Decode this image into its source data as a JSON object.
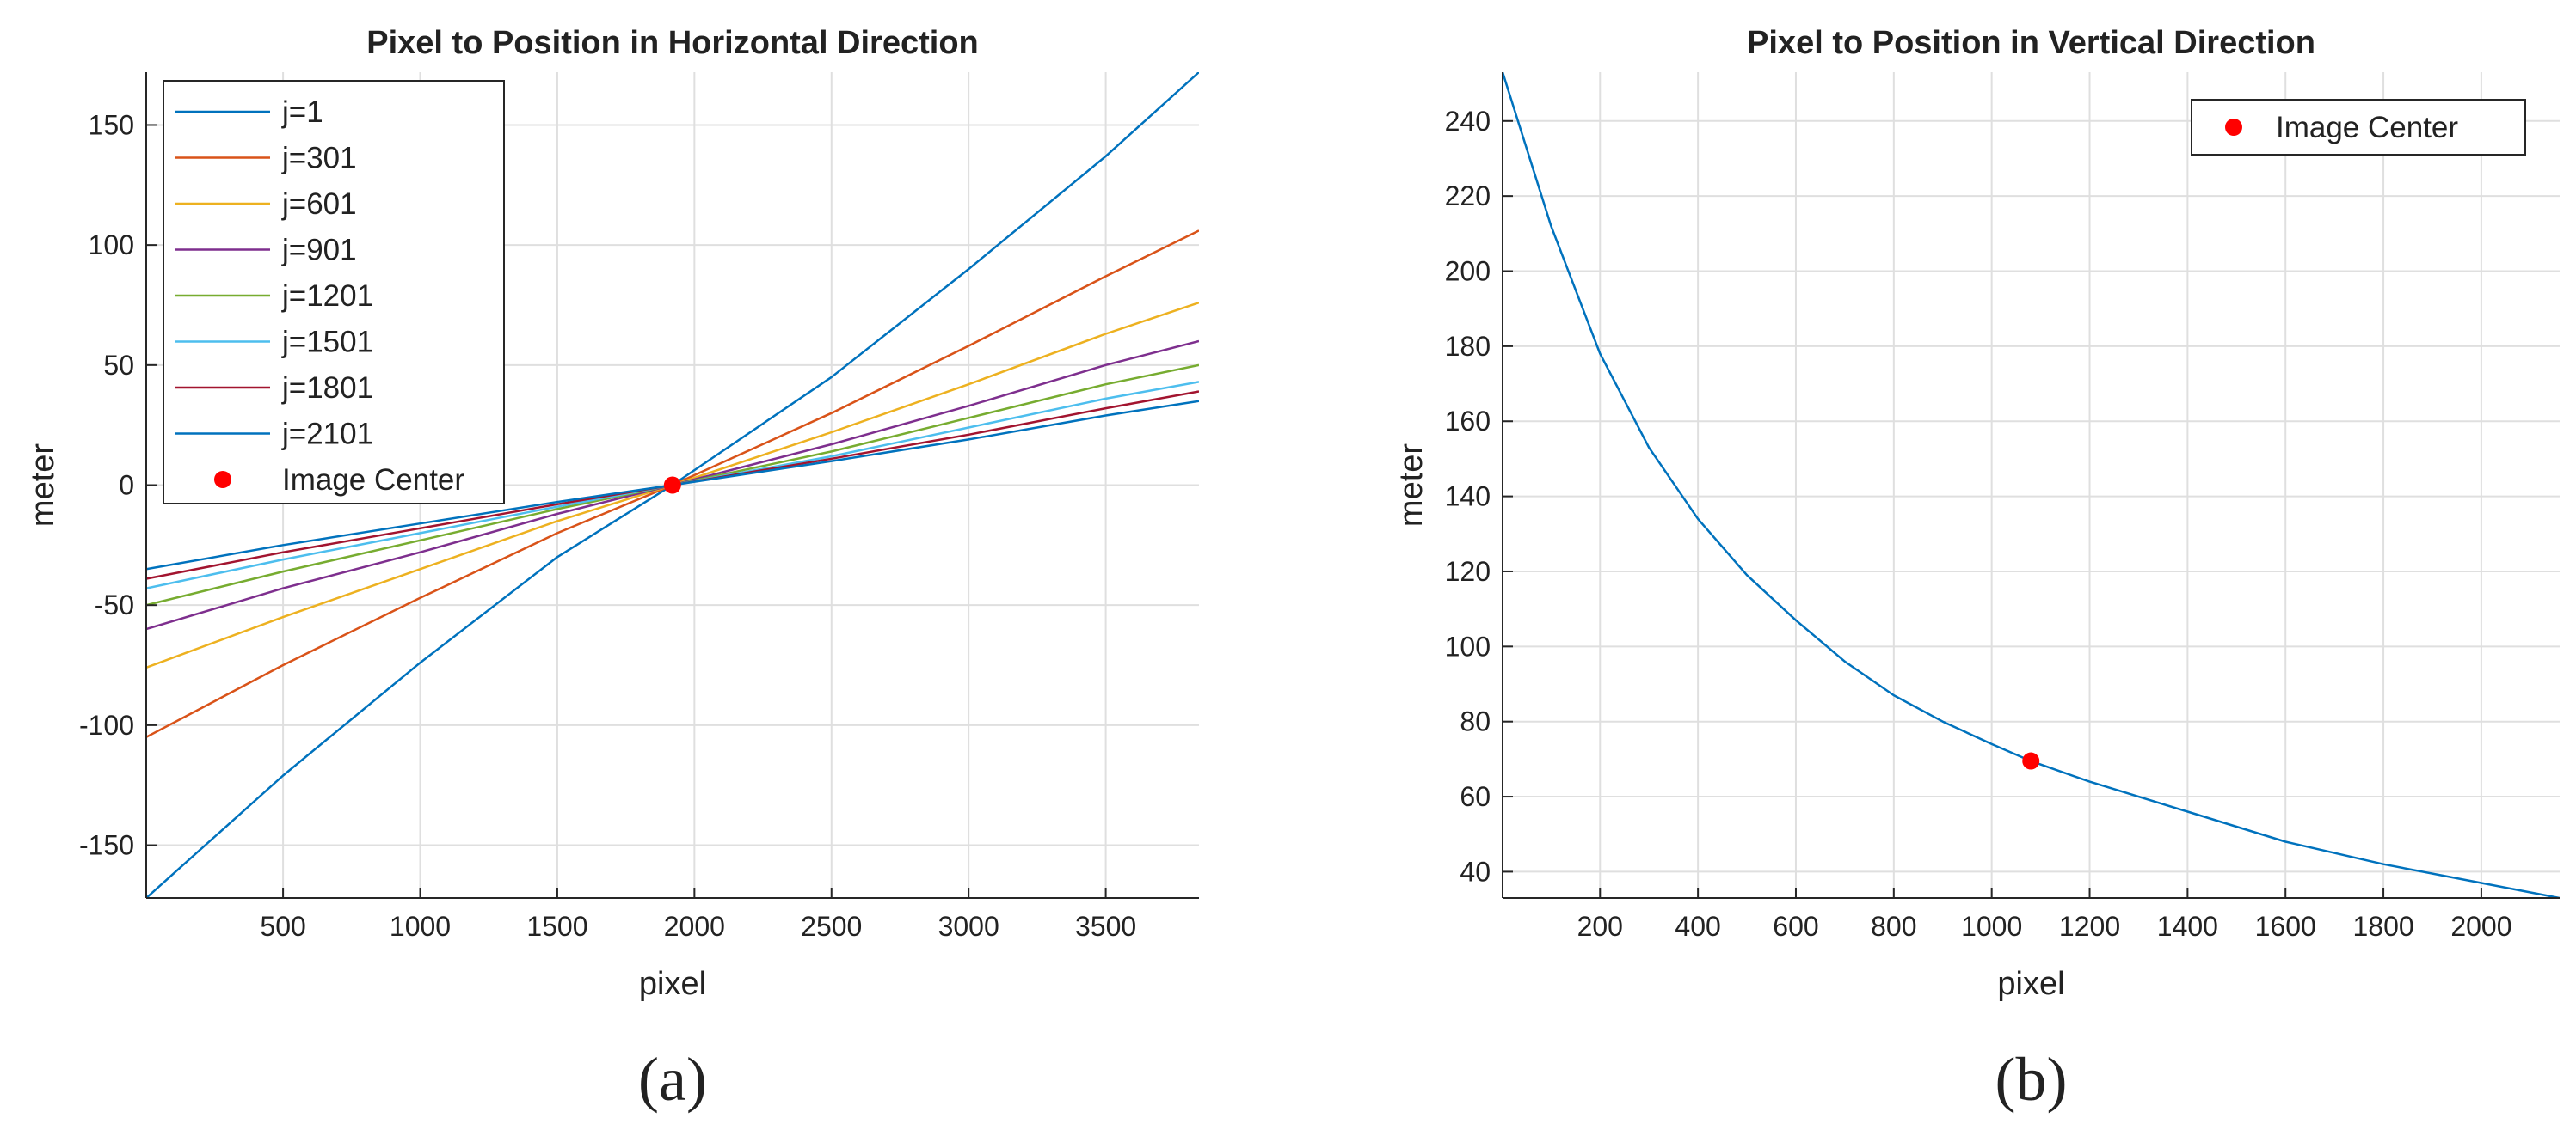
{
  "charts": [
    {
      "caption": "(a)",
      "chart_data": {
        "type": "line",
        "title": "Pixel to Position in Horizontal Direction",
        "xlabel": "pixel",
        "ylabel": "meter",
        "xlim": [
          1,
          3840
        ],
        "ylim": [
          -172,
          172
        ],
        "xticks": [
          500,
          1000,
          1500,
          2000,
          2500,
          3000,
          3500
        ],
        "yticks": [
          -150,
          -100,
          -50,
          0,
          50,
          100,
          150
        ],
        "grid": true,
        "legend": "top-left",
        "x": [
          1,
          500,
          1000,
          1500,
          1920,
          2500,
          3000,
          3500,
          3840
        ],
        "series": [
          {
            "name": "j=1",
            "color": "#0072BD",
            "values": [
              -172,
              -121,
              -74,
              -30,
              0,
              45,
              90,
              137,
              172
            ]
          },
          {
            "name": "j=301",
            "color": "#D95319",
            "values": [
              -105,
              -75,
              -47,
              -20,
              0,
              30,
              58,
              87,
              106
            ]
          },
          {
            "name": "j=601",
            "color": "#EDB120",
            "values": [
              -76,
              -55,
              -35,
              -15,
              0,
              22,
              42,
              63,
              76
            ]
          },
          {
            "name": "j=901",
            "color": "#7E2F8E",
            "values": [
              -60,
              -43,
              -28,
              -12,
              0,
              17,
              33,
              50,
              60
            ]
          },
          {
            "name": "j=1201",
            "color": "#77AC30",
            "values": [
              -50,
              -36,
              -23,
              -10,
              0,
              14,
              28,
              42,
              50
            ]
          },
          {
            "name": "j=1501",
            "color": "#4DBEEE",
            "values": [
              -43,
              -31,
              -20,
              -9,
              0,
              12,
              24,
              36,
              43
            ]
          },
          {
            "name": "j=1801",
            "color": "#A2142F",
            "values": [
              -39,
              -28,
              -18,
              -8,
              0,
              11,
              21,
              32,
              39
            ]
          },
          {
            "name": "j=2101",
            "color": "#0072BD",
            "values": [
              -35,
              -25,
              -16,
              -7,
              0,
              10,
              19,
              29,
              35
            ]
          }
        ],
        "marker": {
          "name": "Image Center",
          "x": 1920,
          "y": 0,
          "color": "#FF0000"
        }
      }
    },
    {
      "caption": "(b)",
      "chart_data": {
        "type": "line",
        "title": "Pixel to Position in Vertical Direction",
        "xlabel": "pixel",
        "ylabel": "meter",
        "xlim": [
          1,
          2160
        ],
        "ylim": [
          33,
          253
        ],
        "xticks": [
          200,
          400,
          600,
          800,
          1000,
          1200,
          1400,
          1600,
          1800,
          2000
        ],
        "yticks": [
          40,
          60,
          80,
          100,
          120,
          140,
          160,
          180,
          200,
          220,
          240
        ],
        "grid": true,
        "legend": "top-right",
        "x": [
          1,
          100,
          200,
          300,
          400,
          500,
          600,
          700,
          800,
          900,
          1000,
          1080,
          1200,
          1400,
          1600,
          1800,
          2000,
          2160
        ],
        "series": [
          {
            "name": "",
            "color": "#0072BD",
            "values": [
              253,
              212,
              178,
              153,
              134,
              119,
              107,
              96,
              87,
              80,
              74,
              69.5,
              64,
              56,
              48,
              42,
              37,
              33
            ]
          }
        ],
        "marker": {
          "name": "Image Center",
          "x": 1080,
          "y": 69.5,
          "color": "#FF0000"
        }
      }
    }
  ]
}
